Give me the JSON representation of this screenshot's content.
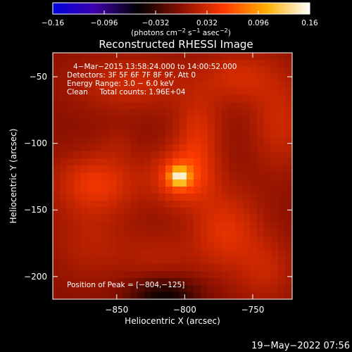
{
  "chart_data": {
    "type": "heatmap",
    "title": "Reconstructed RHESSI Image",
    "xlabel": "Heliocentric X (arcsec)",
    "ylabel": "Heliocentric Y (arcsec)",
    "xlim": [
      -897,
      -721
    ],
    "ylim": [
      -217,
      -32
    ],
    "x_ticks": [
      -850,
      -800,
      -750
    ],
    "y_ticks": [
      -50,
      -100,
      -150,
      -200
    ],
    "colorbar": {
      "min": -0.16,
      "max": 0.16,
      "ticks": [
        -0.16,
        -0.096,
        -0.032,
        0.032,
        0.096,
        0.16
      ],
      "tick_labels": [
        "−0.16",
        "−0.096",
        "−0.032",
        "0.032",
        "0.096",
        "0.16"
      ],
      "unit_label": "(photons cm",
      "unit_exp1": "−2",
      "unit_mid": " s",
      "unit_exp2": "−1",
      "unit_end": " asec",
      "unit_exp3": "−2",
      "unit_close": ")"
    },
    "colormap": [
      "#0000e0",
      "#3f00a8",
      "#000000",
      "#8a1000",
      "#ff3a00",
      "#ffb000",
      "#ffffff"
    ],
    "annotations": [
      "4−Mar−2015 13:58:24.000 to 14:00:52.000",
      "Detectors: 3F 5F 6F 7F 8F 9F, Att 0",
      "Energy Range: 3.0 − 6.0 keV",
      "Clean     Total counts: 1.96E+04"
    ],
    "peak_label": "Position of Peak = [−804,−125]",
    "peak": {
      "x": -804,
      "y": -125,
      "value": 0.16
    },
    "blobs": [
      {
        "x": -804,
        "y": -125,
        "sx": 5,
        "sy": 5,
        "amp": 0.1
      },
      {
        "x": -802,
        "y": -125,
        "sx": 16,
        "sy": 15,
        "amp": 0.055
      },
      {
        "x": -790,
        "y": -92,
        "sx": 12,
        "sy": 20,
        "amp": 0.035
      },
      {
        "x": -865,
        "y": -130,
        "sx": 22,
        "sy": 16,
        "amp": 0.045
      },
      {
        "x": -840,
        "y": -55,
        "sx": 30,
        "sy": 15,
        "amp": 0.03
      },
      {
        "x": -760,
        "y": -50,
        "sx": 20,
        "sy": 14,
        "amp": 0.032
      },
      {
        "x": -730,
        "y": -85,
        "sx": 15,
        "sy": 25,
        "amp": 0.03
      },
      {
        "x": -770,
        "y": -165,
        "sx": 18,
        "sy": 22,
        "amp": 0.04
      },
      {
        "x": -740,
        "y": -195,
        "sx": 15,
        "sy": 18,
        "amp": 0.025
      },
      {
        "x": -820,
        "y": -185,
        "sx": 20,
        "sy": 14,
        "amp": 0.018
      },
      {
        "x": -870,
        "y": -175,
        "sx": 20,
        "sy": 20,
        "amp": 0.02
      },
      {
        "x": -815,
        "y": -215,
        "sx": 18,
        "sy": 10,
        "amp": -0.05
      },
      {
        "x": -850,
        "y": -100,
        "sx": 10,
        "sy": 10,
        "amp": 0.01
      }
    ]
  },
  "footer_date": "19−May−2022 07:56"
}
